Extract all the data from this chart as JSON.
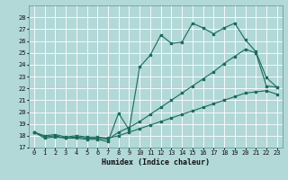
{
  "background_color": "#b2d8d8",
  "grid_color": "#ffffff",
  "line_color": "#1a6b5a",
  "xlabel": "Humidex (Indice chaleur)",
  "ylim": [
    17,
    29
  ],
  "xlim": [
    -0.5,
    23.5
  ],
  "yticks": [
    17,
    18,
    19,
    20,
    21,
    22,
    23,
    24,
    25,
    26,
    27,
    28
  ],
  "xticks": [
    0,
    1,
    2,
    3,
    4,
    5,
    6,
    7,
    8,
    9,
    10,
    11,
    12,
    13,
    14,
    15,
    16,
    17,
    18,
    19,
    20,
    21,
    22,
    23
  ],
  "line1_x": [
    0,
    1,
    2,
    3,
    4,
    5,
    6,
    7,
    8,
    9,
    10,
    11,
    12,
    13,
    14,
    15,
    16,
    17,
    18,
    19,
    20,
    21,
    22,
    23
  ],
  "line1_y": [
    18.3,
    17.8,
    17.9,
    17.8,
    17.8,
    17.7,
    17.7,
    17.5,
    19.9,
    18.5,
    23.8,
    24.8,
    26.5,
    25.8,
    25.9,
    27.5,
    27.1,
    26.6,
    27.1,
    27.5,
    26.1,
    25.1,
    22.9,
    22.1
  ],
  "line2_x": [
    0,
    1,
    2,
    3,
    4,
    5,
    6,
    7,
    8,
    9,
    10,
    11,
    12,
    13,
    14,
    15,
    16,
    17,
    18,
    19,
    20,
    21,
    22,
    23
  ],
  "line2_y": [
    18.3,
    17.9,
    18.0,
    17.8,
    17.9,
    17.8,
    17.8,
    17.7,
    18.3,
    18.7,
    19.2,
    19.8,
    20.4,
    21.0,
    21.6,
    22.2,
    22.8,
    23.4,
    24.1,
    24.7,
    25.3,
    25.0,
    22.2,
    22.1
  ],
  "line3_x": [
    0,
    1,
    2,
    3,
    4,
    5,
    6,
    7,
    8,
    9,
    10,
    11,
    12,
    13,
    14,
    15,
    16,
    17,
    18,
    19,
    20,
    21,
    22,
    23
  ],
  "line3_y": [
    18.3,
    18.0,
    18.1,
    17.9,
    18.0,
    17.9,
    17.9,
    17.8,
    18.0,
    18.3,
    18.6,
    18.9,
    19.2,
    19.5,
    19.8,
    20.1,
    20.4,
    20.7,
    21.0,
    21.3,
    21.6,
    21.7,
    21.8,
    21.5
  ],
  "marker_size": 1.8,
  "linewidth": 0.8,
  "xlabel_fontsize": 6,
  "tick_fontsize": 5
}
